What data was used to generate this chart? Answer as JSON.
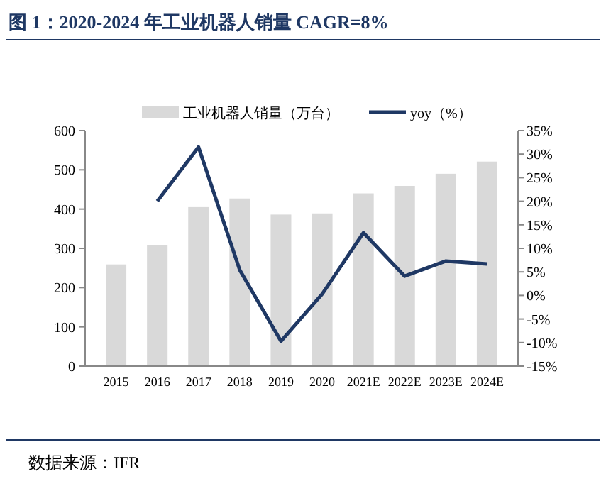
{
  "chart_data": {
    "type": "bar",
    "title": "图 1：2020-2024 年工业机器人销量 CAGR=8%",
    "categories": [
      "2015",
      "2016",
      "2017",
      "2018",
      "2019",
      "2020",
      "2021E",
      "2022E",
      "2023E",
      "2024E"
    ],
    "series": [
      {
        "name": "工业机器人销量（万台）",
        "color": "#d9d9d9",
        "values": [
          259,
          308,
          405,
          427,
          386,
          389,
          440,
          459,
          490,
          521
        ]
      },
      {
        "name": "yoy（%）",
        "type": "line",
        "axis": "y2",
        "color": "#1f3864",
        "values": [
          null,
          20,
          31.5,
          5.4,
          -9.7,
          0.3,
          13.3,
          4.1,
          7.3,
          6.7
        ]
      }
    ],
    "ylim": [
      0,
      600
    ],
    "yticks": [
      0,
      100,
      200,
      300,
      400,
      500,
      600
    ],
    "y2lim": [
      -15,
      35
    ],
    "y2ticks": [
      {
        "value": -15,
        "label": "-15%"
      },
      {
        "value": -10,
        "label": "-10%"
      },
      {
        "value": -5,
        "label": "-5%"
      },
      {
        "value": 0,
        "label": "0%"
      },
      {
        "value": 5,
        "label": "5%"
      },
      {
        "value": 10,
        "label": "10%"
      },
      {
        "value": 15,
        "label": "15%"
      },
      {
        "value": 20,
        "label": "20%"
      },
      {
        "value": 25,
        "label": "25%"
      },
      {
        "value": 30,
        "label": "30%"
      },
      {
        "value": 35,
        "label": "35%"
      }
    ],
    "legend": "top",
    "grid": false,
    "marker": "none",
    "line_style": "solid",
    "annotations": [
      "数据来源：IFR"
    ]
  }
}
